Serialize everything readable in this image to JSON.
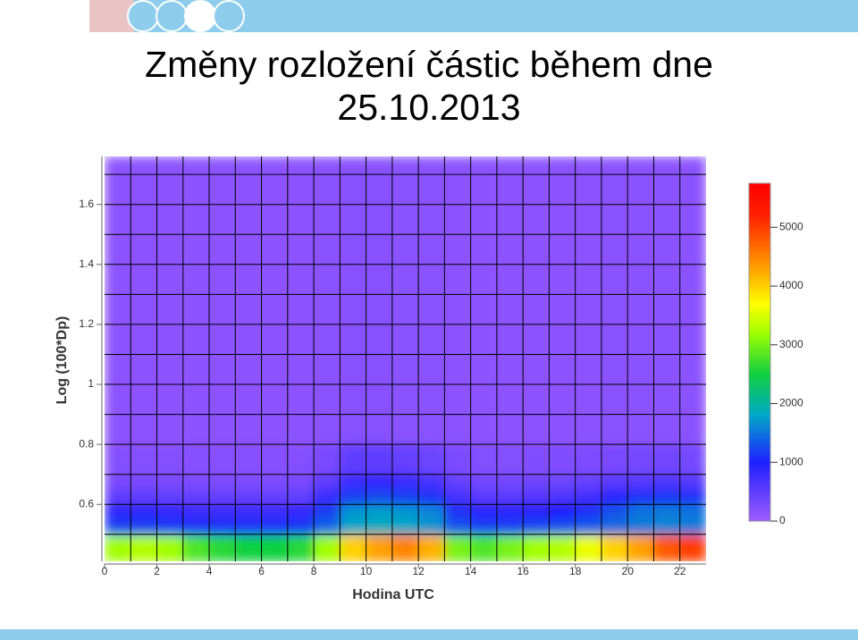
{
  "chart_data": {
    "type": "heatmap",
    "title": "Změny rozložení částic během dne 25.10.2013",
    "x_label": "Hodina UTC",
    "y_label": "Log (100*Dp)",
    "xlim": [
      0,
      23
    ],
    "xticks": [
      0,
      2,
      4,
      6,
      8,
      10,
      12,
      14,
      16,
      18,
      20,
      22
    ],
    "ylim": [
      0.41,
      1.76
    ],
    "yticks": [
      0.6,
      0.8,
      1,
      1.2,
      1.4,
      1.6
    ],
    "x_grid": [
      1,
      2,
      3,
      4,
      5,
      6,
      7,
      8,
      9,
      10,
      11,
      12,
      13,
      14,
      15,
      16,
      17,
      18,
      19,
      20,
      21,
      22
    ],
    "y_grid": [
      0.5,
      0.6,
      0.7,
      0.8,
      0.9,
      1,
      1.1,
      1.2,
      1.3,
      1.4,
      1.5,
      1.6,
      1.7
    ],
    "x_bins": [
      0,
      1,
      2,
      3,
      4,
      5,
      6,
      7,
      8,
      9,
      10,
      11,
      12,
      13,
      14,
      15,
      16,
      17,
      18,
      19,
      20,
      21,
      22,
      23
    ],
    "y_bins": [
      0.41,
      0.5,
      0.55,
      0.6,
      0.65,
      0.7,
      0.8,
      1.76
    ],
    "z": [
      [
        3200,
        3300,
        3200,
        2800,
        2600,
        2500,
        2500,
        2600,
        3200,
        4000,
        4300,
        4500,
        4200,
        3000,
        2800,
        3000,
        3200,
        3300,
        3600,
        4000,
        4300,
        4800,
        5000
      ],
      [
        1200,
        1200,
        1150,
        1100,
        1100,
        1100,
        1100,
        1150,
        1400,
        1800,
        1850,
        1800,
        1700,
        1300,
        1200,
        1200,
        1250,
        1300,
        1350,
        1450,
        1550,
        1600,
        1550
      ],
      [
        900,
        900,
        850,
        800,
        800,
        800,
        800,
        850,
        1200,
        1700,
        1750,
        1700,
        1600,
        1100,
        900,
        900,
        950,
        1000,
        1100,
        1300,
        1500,
        1550,
        1500
      ],
      [
        500,
        500,
        480,
        450,
        450,
        450,
        450,
        480,
        800,
        1200,
        1250,
        1200,
        1100,
        700,
        550,
        550,
        600,
        650,
        750,
        950,
        1100,
        1150,
        1100
      ],
      [
        300,
        300,
        290,
        280,
        280,
        280,
        280,
        300,
        500,
        800,
        850,
        800,
        700,
        450,
        350,
        350,
        380,
        400,
        450,
        550,
        600,
        650,
        600
      ],
      [
        200,
        200,
        200,
        190,
        190,
        190,
        190,
        200,
        300,
        500,
        500,
        450,
        400,
        280,
        220,
        220,
        230,
        240,
        260,
        300,
        330,
        350,
        330
      ],
      [
        150,
        150,
        150,
        150,
        150,
        150,
        150,
        150,
        160,
        180,
        180,
        170,
        160,
        150,
        150,
        150,
        150,
        150,
        150,
        160,
        160,
        160,
        160
      ]
    ],
    "clim": [
      0,
      5750
    ],
    "cticks": [
      0,
      1000,
      2000,
      3000,
      4000,
      5000
    ],
    "colorscale": [
      [
        0,
        "#9f5cff"
      ],
      [
        1000,
        "#1f1fff"
      ],
      [
        1800,
        "#00a8c8"
      ],
      [
        2500,
        "#10d040"
      ],
      [
        3200,
        "#a0ff00"
      ],
      [
        3700,
        "#ffff00"
      ],
      [
        4300,
        "#ffa000"
      ],
      [
        5200,
        "#ff2000"
      ],
      [
        5750,
        "#ff0000"
      ]
    ],
    "grid_color": "#000000"
  }
}
